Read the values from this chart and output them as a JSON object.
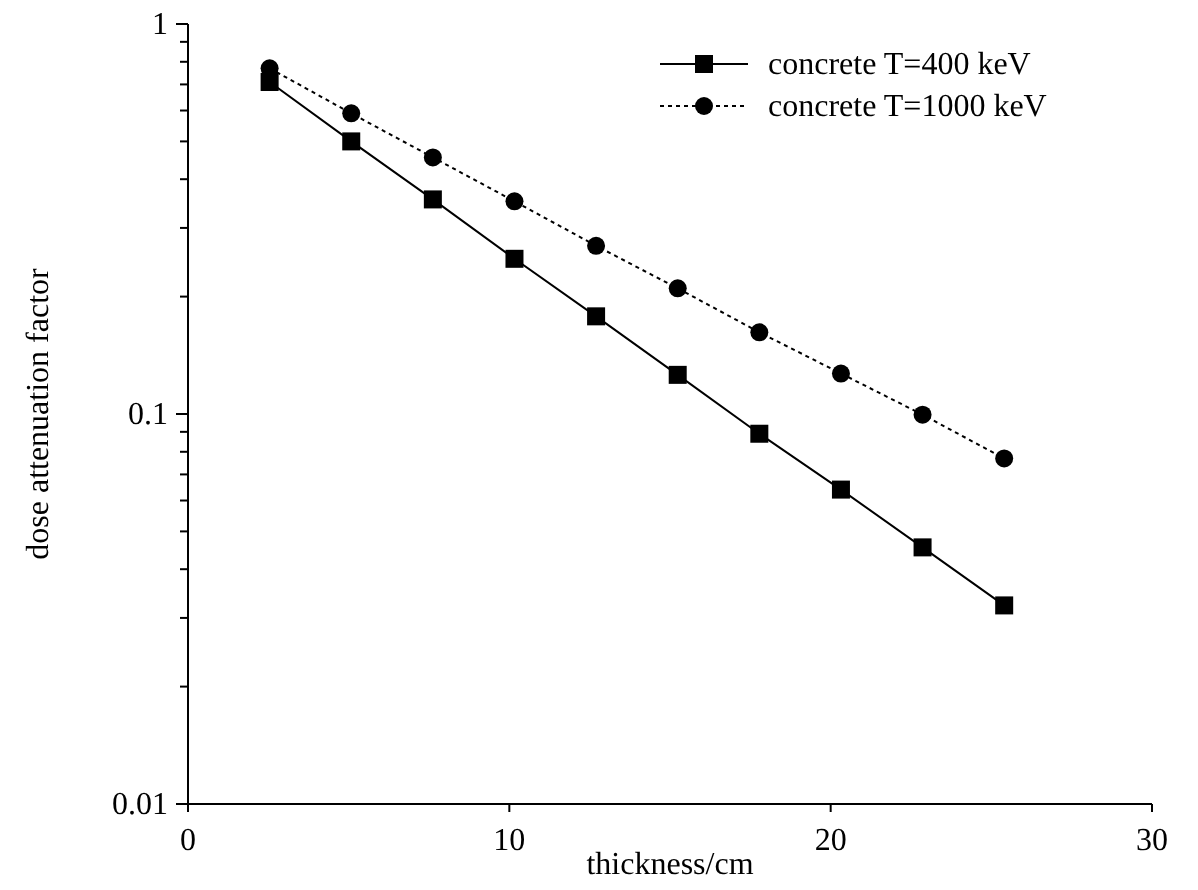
{
  "chart_data": {
    "type": "line",
    "xlabel": "thickness/cm",
    "ylabel": "dose attenuation factor",
    "log": "y",
    "x": [
      2.54,
      5.08,
      7.62,
      10.16,
      12.7,
      15.24,
      17.78,
      20.32,
      22.86,
      25.4
    ],
    "xlim": [
      0,
      30
    ],
    "xticks": [
      0,
      10,
      20,
      30
    ],
    "ylim": [
      0.01,
      1
    ],
    "yticks": [
      {
        "value": 0.01,
        "label": "0.01"
      },
      {
        "value": 0.02,
        "label": null
      },
      {
        "value": 0.03,
        "label": null
      },
      {
        "value": 0.04,
        "label": null
      },
      {
        "value": 0.05,
        "label": null
      },
      {
        "value": 0.06,
        "label": null
      },
      {
        "value": 0.07,
        "label": null
      },
      {
        "value": 0.08,
        "label": null
      },
      {
        "value": 0.09,
        "label": null
      },
      {
        "value": 0.1,
        "label": "0.1"
      },
      {
        "value": 0.2,
        "label": null
      },
      {
        "value": 0.3,
        "label": null
      },
      {
        "value": 0.4,
        "label": null
      },
      {
        "value": 0.5,
        "label": null
      },
      {
        "value": 0.6,
        "label": null
      },
      {
        "value": 0.7,
        "label": null
      },
      {
        "value": 0.8,
        "label": null
      },
      {
        "value": 0.9,
        "label": null
      },
      {
        "value": 1,
        "label": "1"
      }
    ],
    "legend": "top right",
    "grid": false,
    "series": [
      {
        "name": "concrete T=400 keV",
        "color": "#000000",
        "marker": "square",
        "line_style": "solid",
        "values": [
          0.71,
          0.5,
          0.355,
          0.25,
          0.178,
          0.126,
          0.089,
          0.064,
          0.0455,
          0.0323
        ]
      },
      {
        "name": "concrete T=1000 keV",
        "color": "#000000",
        "marker": "circle",
        "line_style": "dotted",
        "values": [
          0.77,
          0.59,
          0.455,
          0.351,
          0.27,
          0.21,
          0.162,
          0.127,
          0.0996,
          0.0769
        ]
      }
    ]
  }
}
